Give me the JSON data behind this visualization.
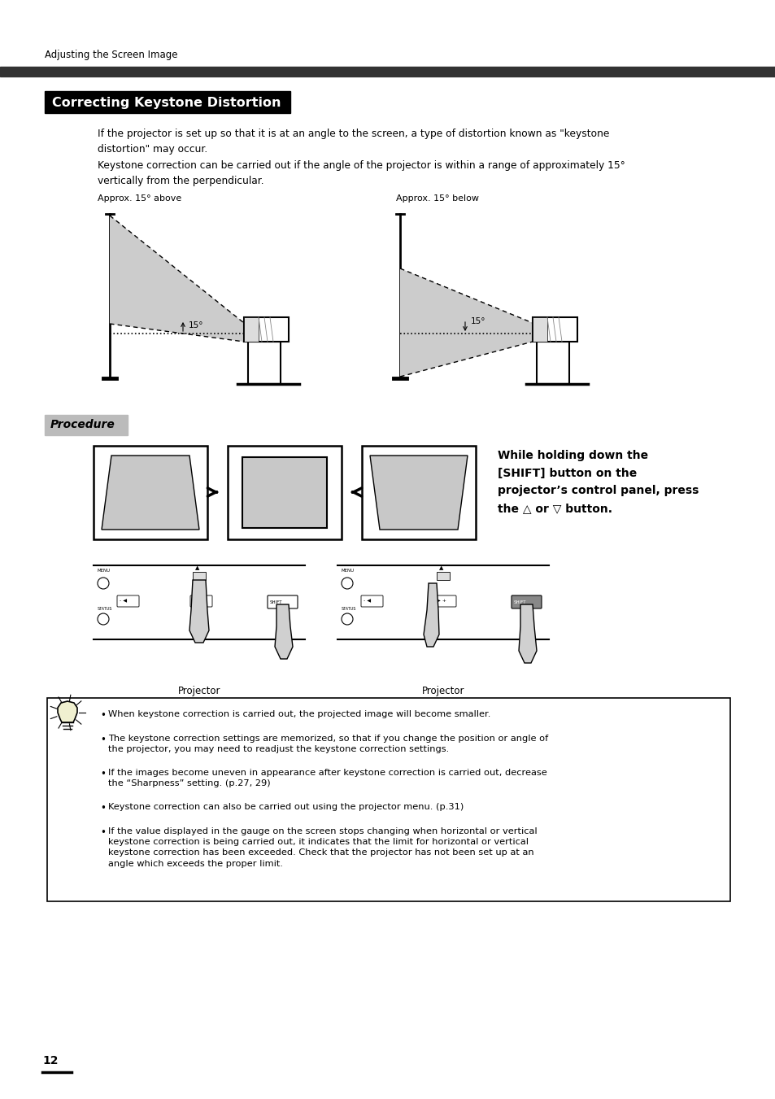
{
  "page_header": "Adjusting the Screen Image",
  "header_bar_color": "#333333",
  "section_title": "Correcting Keystone Distortion",
  "section_title_bg": "#000000",
  "section_title_color": "#ffffff",
  "body_text_1": "If the projector is set up so that it is at an angle to the screen, a type of distortion known as \"keystone\ndistortion\" may occur.",
  "body_text_2": "Keystone correction can be carried out if the angle of the projector is within a range of approximately 15°\nvertically from the perpendicular.",
  "label_above": "Approx. 15° above",
  "label_below": "Approx. 15° below",
  "procedure_label": "Procedure",
  "procedure_bg": "#bbbbbb",
  "instruction_text": "While holding down the\n[SHIFT] button on the\nprojector’s control panel, press\nthe △ or ▽ button.",
  "projector_label": "Projector",
  "note_bullet_1": "When keystone correction is carried out, the projected image will become smaller.",
  "note_bullet_2": "The keystone correction settings are memorized, so that if you change the position or angle of\nthe projector, you may need to readjust the keystone correction settings.",
  "note_bullet_3": "If the images become uneven in appearance after keystone correction is carried out, decrease\nthe “Sharpness” setting. (p.27, 29)",
  "note_bullet_4": "Keystone correction can also be carried out using the projector menu. (p.31)",
  "note_bullet_5": "If the value displayed in the gauge on the screen stops changing when horizontal or vertical\nkeystone correction is being carried out, it indicates that the limit for horizontal or vertical\nkeystone correction has been exceeded. Check that the projector has not been set up at an\nangle which exceeds the proper limit.",
  "page_number": "12",
  "bg_color": "#ffffff",
  "gray_cone": "#cccccc",
  "gray_shape": "#c8c8c8"
}
